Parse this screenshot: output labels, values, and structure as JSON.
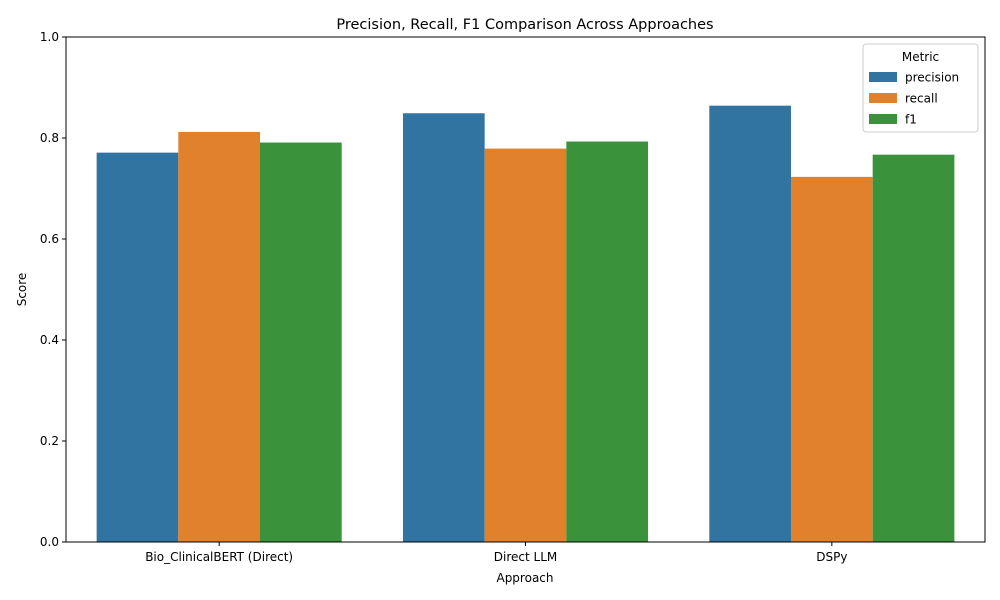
{
  "chart_data": {
    "type": "bar",
    "title": "Precision, Recall, F1 Comparison Across Approaches",
    "xlabel": "Approach",
    "ylabel": "Score",
    "ylim": [
      0,
      1.0
    ],
    "yticks": [
      "0.0",
      "0.2",
      "0.4",
      "0.6",
      "0.8",
      "1.0"
    ],
    "categories": [
      "Bio_ClinicalBERT (Direct)",
      "Direct LLM",
      "DSPy"
    ],
    "series": [
      {
        "name": "precision",
        "color": "#3274a1",
        "values": [
          0.771,
          0.849,
          0.864
        ]
      },
      {
        "name": "recall",
        "color": "#e1812c",
        "values": [
          0.812,
          0.779,
          0.723
        ]
      },
      {
        "name": "f1",
        "color": "#3a923a",
        "values": [
          0.791,
          0.793,
          0.767
        ]
      }
    ],
    "legend": {
      "title": "Metric",
      "placement": "top-right"
    },
    "grid": false
  }
}
